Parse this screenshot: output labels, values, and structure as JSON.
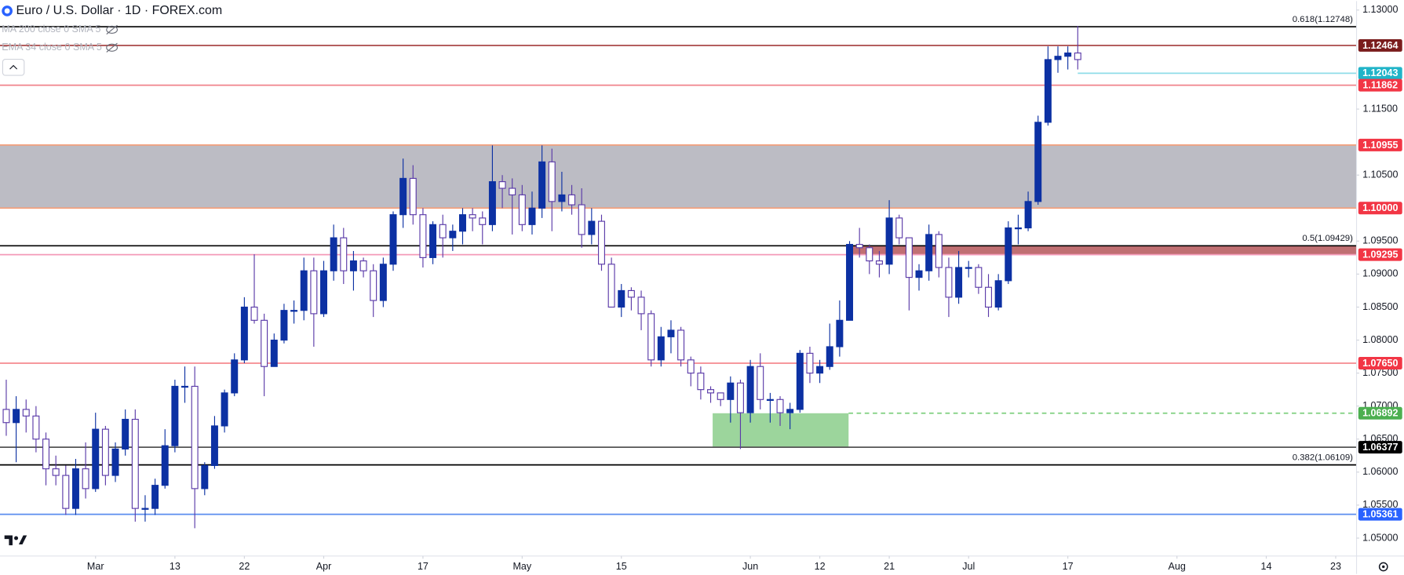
{
  "chart_data": {
    "type": "candlestick",
    "title": "Euro / U.S. Dollar · 1D · FOREX.com",
    "indicators": [
      "MA 200 close 0 SMA 5",
      "EMA 34 close 0 SMA 5"
    ],
    "xlim": [
      -0.63,
      136.1
    ],
    "ylim": [
      1.04729,
      1.13136
    ],
    "grid": false,
    "xticks": [
      {
        "value": 9,
        "label": "Mar"
      },
      {
        "value": 17,
        "label": "13"
      },
      {
        "value": 24,
        "label": "22"
      },
      {
        "value": 32,
        "label": "Apr"
      },
      {
        "value": 42,
        "label": "17"
      },
      {
        "value": 52,
        "label": "May"
      },
      {
        "value": 62,
        "label": "15"
      },
      {
        "value": 75,
        "label": "Jun"
      },
      {
        "value": 82,
        "label": "12"
      },
      {
        "value": 89,
        "label": "21"
      },
      {
        "value": 97,
        "label": "Jul"
      },
      {
        "value": 107,
        "label": "17"
      },
      {
        "value": 118,
        "label": "Aug"
      },
      {
        "value": 127,
        "label": "14"
      },
      {
        "value": 134,
        "label": "23"
      }
    ],
    "yticks": [
      {
        "value": 1.13,
        "label": "1.13000"
      },
      {
        "value": 1.115,
        "label": "1.11500"
      },
      {
        "value": 1.105,
        "label": "1.10500"
      },
      {
        "value": 1.095,
        "label": "1.09500"
      },
      {
        "value": 1.09,
        "label": "1.09000"
      },
      {
        "value": 1.085,
        "label": "1.08500"
      },
      {
        "value": 1.08,
        "label": "1.08000"
      },
      {
        "value": 1.075,
        "label": "1.07500"
      },
      {
        "value": 1.07,
        "label": "1.07000"
      },
      {
        "value": 1.065,
        "label": "1.06500"
      },
      {
        "value": 1.06,
        "label": "1.06000"
      },
      {
        "value": 1.055,
        "label": "1.05500"
      },
      {
        "value": 1.05,
        "label": "1.05000"
      }
    ],
    "up_color": "#0c31a3",
    "down_color": "#ffffff",
    "down_border_color": "#5a3aa8",
    "open": [
      1.0695,
      1.0675,
      1.0695,
      1.0685,
      1.065,
      1.0605,
      1.0595,
      1.0545,
      1.0605,
      1.0575,
      1.0665,
      1.0595,
      1.0635,
      1.068,
      1.0545,
      1.0545,
      1.058,
      1.064,
      1.073,
      1.073,
      1.0575,
      1.061,
      1.067,
      1.072,
      1.077,
      1.085,
      1.083,
      1.076,
      1.08,
      1.0845,
      1.0845,
      1.0905,
      1.084,
      1.0905,
      1.0955,
      1.0905,
      1.092,
      1.0905,
      1.086,
      1.0915,
      1.099,
      1.1045,
      1.099,
      1.0925,
      1.0975,
      1.0955,
      1.0965,
      1.099,
      1.0985,
      1.0975,
      1.104,
      1.103,
      1.102,
      1.0975,
      1.1,
      1.107,
      1.101,
      1.102,
      1.1005,
      1.096,
      1.098,
      1.0915,
      1.085,
      1.0875,
      1.0865,
      1.084,
      1.077,
      1.0805,
      1.0815,
      1.077,
      1.075,
      1.0725,
      1.072,
      1.071,
      1.0735,
      1.069,
      1.076,
      1.071,
      1.071,
      1.069,
      1.0695,
      1.078,
      1.075,
      1.076,
      1.079,
      1.083,
      1.0945,
      1.094,
      1.092,
      1.0915,
      1.0985,
      1.0955,
      1.0895,
      1.0905,
      1.096,
      1.091,
      1.0865,
      1.091,
      1.091,
      1.088,
      1.085,
      1.089,
      1.097,
      1.097,
      1.101,
      1.113,
      1.1225,
      1.123,
      1.1235
    ],
    "high": [
      1.074,
      1.0715,
      1.071,
      1.07,
      1.066,
      1.0625,
      1.061,
      1.062,
      1.0645,
      1.069,
      1.067,
      1.0645,
      1.0695,
      1.0695,
      1.0565,
      1.059,
      1.0665,
      1.074,
      1.076,
      1.076,
      1.0615,
      1.0685,
      1.0725,
      1.078,
      1.0865,
      1.093,
      1.084,
      1.081,
      1.0855,
      1.086,
      1.0925,
      1.0925,
      1.092,
      1.0975,
      1.097,
      1.0935,
      1.0925,
      1.0915,
      1.0925,
      1.0995,
      1.1075,
      1.1065,
      1.1,
      1.098,
      1.099,
      1.0975,
      1.1,
      1.1,
      1.0995,
      1.1095,
      1.105,
      1.1045,
      1.1035,
      1.1025,
      1.1095,
      1.109,
      1.1055,
      1.1035,
      1.103,
      1.1,
      1.099,
      1.0925,
      1.0885,
      1.088,
      1.0875,
      1.0845,
      1.082,
      1.083,
      1.082,
      1.0775,
      1.076,
      1.073,
      1.072,
      1.0745,
      1.074,
      1.077,
      1.078,
      1.072,
      1.0715,
      1.0705,
      1.0785,
      1.079,
      1.077,
      1.0825,
      1.086,
      1.095,
      1.097,
      1.0945,
      1.0935,
      1.1012,
      1.099,
      1.0955,
      1.0915,
      1.0975,
      1.0965,
      1.0925,
      1.0935,
      1.092,
      1.0915,
      1.09,
      1.09,
      1.098,
      1.099,
      1.1025,
      1.114,
      1.1245,
      1.1245,
      1.1245,
      1.1276
    ],
    "low": [
      1.0655,
      1.0615,
      1.066,
      1.063,
      1.058,
      1.058,
      1.0535,
      1.0535,
      1.056,
      1.057,
      1.058,
      1.0585,
      1.0625,
      1.0525,
      1.0525,
      1.0535,
      1.0575,
      1.063,
      1.0705,
      1.0515,
      1.0565,
      1.0605,
      1.066,
      1.0715,
      1.0765,
      1.0825,
      1.0715,
      1.076,
      1.0795,
      1.0825,
      1.083,
      1.079,
      1.0835,
      1.089,
      1.0885,
      1.0875,
      1.0895,
      1.0835,
      1.085,
      1.0905,
      1.097,
      1.0975,
      1.091,
      1.0915,
      1.0925,
      1.0935,
      1.0945,
      1.0965,
      1.0945,
      1.0965,
      1.1,
      1.096,
      1.0965,
      1.096,
      1.0985,
      1.0965,
      1.0995,
      1.099,
      1.094,
      1.0945,
      1.0905,
      1.085,
      1.0835,
      1.0845,
      1.0815,
      1.076,
      1.076,
      1.078,
      1.076,
      1.073,
      1.071,
      1.0705,
      1.07,
      1.0675,
      1.0635,
      1.0675,
      1.0695,
      1.0675,
      1.067,
      1.0665,
      1.069,
      1.0735,
      1.0735,
      1.0755,
      1.0775,
      1.083,
      1.0925,
      1.09,
      1.0895,
      1.09,
      1.0945,
      1.0845,
      1.0875,
      1.089,
      1.0895,
      1.0835,
      1.0855,
      1.0895,
      1.087,
      1.0835,
      1.0845,
      1.0885,
      1.0945,
      1.0965,
      1.1005,
      1.1125,
      1.1205,
      1.121,
      1.121
    ],
    "close": [
      1.0675,
      1.0695,
      1.0685,
      1.065,
      1.0605,
      1.0595,
      1.0545,
      1.0605,
      1.0575,
      1.0665,
      1.0595,
      1.0635,
      1.068,
      1.0545,
      1.0545,
      1.058,
      1.064,
      1.073,
      1.073,
      1.0575,
      1.061,
      1.067,
      1.072,
      1.077,
      1.085,
      1.083,
      1.076,
      1.08,
      1.0845,
      1.0845,
      1.0905,
      1.084,
      1.0905,
      1.0955,
      1.0905,
      1.092,
      1.0905,
      1.086,
      1.0915,
      1.099,
      1.1045,
      1.099,
      1.0925,
      1.0975,
      1.0955,
      1.0965,
      1.099,
      1.0985,
      1.0975,
      1.104,
      1.103,
      1.102,
      1.0975,
      1.1,
      1.107,
      1.101,
      1.102,
      1.1005,
      1.096,
      1.098,
      1.0915,
      1.085,
      1.0875,
      1.0865,
      1.084,
      1.077,
      1.0805,
      1.0815,
      1.077,
      1.075,
      1.0725,
      1.072,
      1.071,
      1.0735,
      1.069,
      1.076,
      1.071,
      1.071,
      1.069,
      1.0695,
      1.078,
      1.075,
      1.076,
      1.079,
      1.083,
      1.0945,
      1.094,
      1.092,
      1.0915,
      1.0985,
      1.0955,
      1.0895,
      1.0905,
      1.096,
      1.091,
      1.0865,
      1.091,
      1.091,
      1.088,
      1.085,
      1.089,
      1.097,
      1.097,
      1.101,
      1.113,
      1.1225,
      1.123,
      1.1235,
      1.1225
    ],
    "zones": [
      {
        "y": [
          1.1,
          1.10955
        ],
        "color": "#bcbcc4"
      },
      {
        "y": [
          1.09295,
          1.09429
        ],
        "x": [
          84.9,
          136.1
        ],
        "color": "#c06f72"
      },
      {
        "y": [
          1.06377,
          1.06892
        ],
        "x": [
          71.2,
          84.9
        ],
        "color": "#9cd59c"
      }
    ],
    "levels": [
      {
        "value": 1.12464,
        "label": "1.12464",
        "badge": "#7a1c1c",
        "line": "#a33a3a"
      },
      {
        "value": 1.12043,
        "label": "1.12043",
        "badge": "#20b4c8",
        "line": "#8fdde8",
        "from": 108
      },
      {
        "value": 1.11862,
        "label": "1.11862",
        "badge": "#f23645",
        "line": "#f0838b"
      },
      {
        "value": 1.10955,
        "label": "1.10955",
        "badge": "#f23645",
        "line": "#f4a07c"
      },
      {
        "value": 1.1,
        "label": "1.10000",
        "badge": "#f23645",
        "line": "#f4a07c"
      },
      {
        "value": 1.09295,
        "label": "1.09295",
        "badge": "#f23645",
        "line": "#f49ab8"
      },
      {
        "value": 1.0765,
        "label": "1.07650",
        "badge": "#f23645",
        "line": "#f4898f"
      },
      {
        "value": 1.06892,
        "label": "1.06892",
        "badge": "#4caf50",
        "line": "#7fcf7f",
        "from": 84.9,
        "dash": true
      },
      {
        "value": 1.06377,
        "label": "1.06377",
        "badge": "#000000",
        "line": "#555555"
      },
      {
        "value": 1.05361,
        "label": "1.05361",
        "badge": "#2962ff",
        "line": "#5b8def"
      }
    ],
    "fibs": [
      {
        "value": 1.12748,
        "label": "0.618(1.12748)"
      },
      {
        "value": 1.09429,
        "label": "0.5(1.09429)"
      },
      {
        "value": 1.06109,
        "label": "0.382(1.06109)"
      }
    ]
  }
}
